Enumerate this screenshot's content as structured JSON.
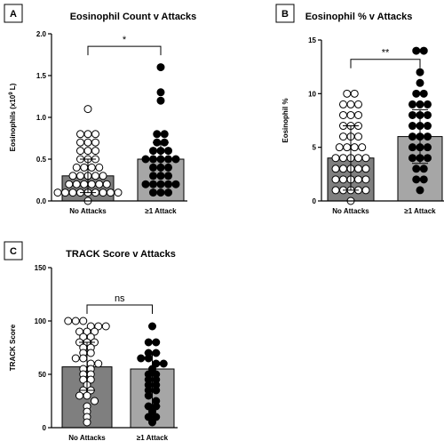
{
  "chart_data": [
    {
      "panel": "A",
      "type": "bar",
      "title": "Eosinophil Count v Attacks",
      "ylabel_main": "Eosinophils (x10",
      "ylabel_sup": "9",
      "ylabel_rest": " L)",
      "ylim": [
        0,
        2.0
      ],
      "yticks": [
        "0.0",
        "0.5",
        "1.0",
        "1.5",
        "2.0"
      ],
      "categories": [
        "No Attacks",
        "≥1 Attack"
      ],
      "bar_colors": [
        "#7f7f7f",
        "#a6a6a6"
      ],
      "means": [
        0.3,
        0.5
      ],
      "error_upper": [
        0.5,
        0.7
      ],
      "error_lower": [
        0.1,
        0.3
      ],
      "significance": "*",
      "points": [
        [
          1.1,
          0.8,
          0.8,
          0.8,
          0.7,
          0.7,
          0.7,
          0.6,
          0.6,
          0.6,
          0.5,
          0.5,
          0.5,
          0.4,
          0.4,
          0.4,
          0.4,
          0.3,
          0.3,
          0.3,
          0.3,
          0.3,
          0.2,
          0.2,
          0.2,
          0.2,
          0.2,
          0.2,
          0.1,
          0.1,
          0.1,
          0.1,
          0.1,
          0.1,
          0.1,
          0.1,
          0.1,
          0.0
        ],
        [
          1.6,
          1.3,
          1.2,
          0.8,
          0.8,
          0.7,
          0.7,
          0.6,
          0.6,
          0.6,
          0.5,
          0.5,
          0.5,
          0.5,
          0.5,
          0.4,
          0.4,
          0.4,
          0.3,
          0.3,
          0.3,
          0.2,
          0.2,
          0.2,
          0.2,
          0.2,
          0.1,
          0.1,
          0.1
        ]
      ]
    },
    {
      "panel": "B",
      "type": "bar",
      "title": "Eosinophil % v Attacks",
      "ylabel_main": "Eosinophil %",
      "ylabel_sup": "",
      "ylabel_rest": "",
      "ylim": [
        0,
        15
      ],
      "yticks": [
        "0",
        "5",
        "10",
        "15"
      ],
      "categories": [
        "No Attacks",
        "≥1 Attack"
      ],
      "bar_colors": [
        "#7f7f7f",
        "#a6a6a6"
      ],
      "means": [
        4,
        6
      ],
      "error_upper": [
        7,
        8.5
      ],
      "error_lower": [
        1,
        3.5
      ],
      "significance": "**",
      "points": [
        [
          10,
          10,
          9,
          9,
          9,
          8,
          8,
          8,
          7,
          7,
          7,
          6,
          6,
          6,
          5,
          5,
          5,
          5,
          4,
          4,
          4,
          4,
          4,
          3,
          3,
          3,
          3,
          3,
          2,
          2,
          2,
          2,
          2,
          1,
          1,
          1,
          1,
          1,
          0
        ],
        [
          14,
          14,
          12,
          11,
          10,
          10,
          9,
          9,
          9,
          8,
          8,
          8,
          7,
          7,
          7,
          6,
          6,
          6,
          5,
          5,
          5,
          4,
          4,
          4,
          3,
          3,
          2,
          2,
          1
        ]
      ]
    },
    {
      "panel": "C",
      "type": "bar",
      "title": "TRACK Score v Attacks",
      "ylabel_main": "TRACK Score",
      "ylabel_sup": "",
      "ylabel_rest": "",
      "ylim": [
        0,
        150
      ],
      "yticks": [
        "0",
        "50",
        "100",
        "150"
      ],
      "categories": [
        "No Attacks",
        "≥1 Attack"
      ],
      "bar_colors": [
        "#7f7f7f",
        "#a6a6a6"
      ],
      "means": [
        57,
        55
      ],
      "error_upper": [
        80,
        70
      ],
      "error_lower": [
        35,
        20
      ],
      "significance": "ns",
      "points": [
        [
          100,
          100,
          100,
          95,
          95,
          95,
          90,
          90,
          90,
          85,
          85,
          80,
          80,
          80,
          75,
          75,
          70,
          70,
          65,
          65,
          60,
          60,
          55,
          55,
          50,
          50,
          45,
          45,
          40,
          35,
          35,
          30,
          30,
          25,
          20,
          15,
          10,
          5
        ],
        [
          95,
          80,
          80,
          70,
          70,
          65,
          65,
          60,
          60,
          55,
          50,
          50,
          45,
          45,
          40,
          40,
          35,
          35,
          30,
          25,
          20,
          20,
          15,
          10,
          10,
          5
        ]
      ]
    }
  ]
}
